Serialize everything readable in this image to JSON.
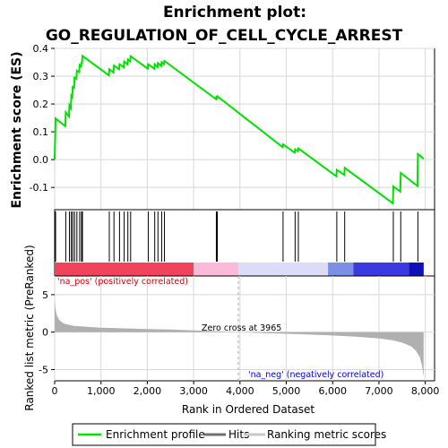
{
  "chart_data": {
    "type": "line",
    "title": "Enrichment plot:",
    "subtitle": "GO_REGULATION_OF_CELL_CYCLE_ARREST",
    "xlabel": "Rank in Ordered Dataset",
    "ylabel_top": "Enrichment score (ES)",
    "ylabel_bottom": "Ranked list metric (PreRanked)",
    "xlim": [
      0,
      8000
    ],
    "x_ticks": [
      0,
      1000,
      2000,
      3000,
      4000,
      5000,
      6000,
      7000,
      8000
    ],
    "x_tick_labels": [
      "0",
      "1,000",
      "2,000",
      "3,000",
      "4,000",
      "5,000",
      "6,000",
      "7,000",
      "8,000"
    ],
    "es_ylim": [
      -0.18,
      0.4
    ],
    "es_ticks": [
      -0.1,
      0.0,
      0.1,
      0.2,
      0.3,
      0.4
    ],
    "es_tick_labels": [
      "-0.1",
      "0.0",
      "0.1",
      "0.2",
      "0.3",
      "0.4"
    ],
    "metric_ylim": [
      -6.5,
      7.5
    ],
    "metric_ticks": [
      -5,
      0,
      5
    ],
    "metric_tick_labels": [
      "-5",
      "0",
      "5"
    ],
    "total_genes": 7965,
    "hits": [
      20,
      240,
      320,
      360,
      390,
      430,
      480,
      540,
      580,
      600,
      1180,
      1280,
      1400,
      1500,
      1580,
      1640,
      2020,
      2160,
      2230,
      2310,
      2370,
      3490,
      3510,
      4930,
      5190,
      5260,
      6090,
      6260,
      7310,
      7470,
      7840
    ],
    "enrichment_profile": [
      [
        0,
        0.0
      ],
      [
        20,
        0.148
      ],
      [
        230,
        0.12
      ],
      [
        240,
        0.17
      ],
      [
        310,
        0.155
      ],
      [
        320,
        0.195
      ],
      [
        350,
        0.185
      ],
      [
        360,
        0.23
      ],
      [
        380,
        0.225
      ],
      [
        390,
        0.265
      ],
      [
        420,
        0.255
      ],
      [
        430,
        0.295
      ],
      [
        470,
        0.29
      ],
      [
        480,
        0.32
      ],
      [
        530,
        0.315
      ],
      [
        540,
        0.34
      ],
      [
        570,
        0.335
      ],
      [
        580,
        0.35
      ],
      [
        590,
        0.345
      ],
      [
        600,
        0.373
      ],
      [
        1170,
        0.303
      ],
      [
        1180,
        0.325
      ],
      [
        1270,
        0.313
      ],
      [
        1280,
        0.338
      ],
      [
        1390,
        0.325
      ],
      [
        1400,
        0.343
      ],
      [
        1490,
        0.332
      ],
      [
        1500,
        0.353
      ],
      [
        1570,
        0.343
      ],
      [
        1580,
        0.36
      ],
      [
        1630,
        0.353
      ],
      [
        1640,
        0.372
      ],
      [
        2010,
        0.327
      ],
      [
        2020,
        0.343
      ],
      [
        2150,
        0.327
      ],
      [
        2160,
        0.343
      ],
      [
        2220,
        0.333
      ],
      [
        2230,
        0.347
      ],
      [
        2300,
        0.337
      ],
      [
        2310,
        0.35
      ],
      [
        2360,
        0.343
      ],
      [
        2370,
        0.355
      ],
      [
        3480,
        0.218
      ],
      [
        3490,
        0.228
      ],
      [
        3500,
        0.222
      ],
      [
        3510,
        0.228
      ],
      [
        4920,
        0.045
      ],
      [
        4930,
        0.055
      ],
      [
        5180,
        0.025
      ],
      [
        5190,
        0.037
      ],
      [
        5250,
        0.03
      ],
      [
        5260,
        0.04
      ],
      [
        6080,
        -0.06
      ],
      [
        6090,
        -0.037
      ],
      [
        6250,
        -0.055
      ],
      [
        6260,
        -0.03
      ],
      [
        7300,
        -0.157
      ],
      [
        7310,
        -0.097
      ],
      [
        7460,
        -0.115
      ],
      [
        7470,
        -0.048
      ],
      [
        7830,
        -0.095
      ],
      [
        7840,
        0.02
      ],
      [
        7965,
        0.003
      ]
    ],
    "color_bar_segments": [
      {
        "start": 0,
        "end": 3000,
        "color": "#f0445e"
      },
      {
        "start": 3000,
        "end": 3965,
        "color": "#fbbad8"
      },
      {
        "start": 3965,
        "end": 5900,
        "color": "#dadcf8"
      },
      {
        "start": 5900,
        "end": 6450,
        "color": "#7b8ee8"
      },
      {
        "start": 6450,
        "end": 7650,
        "color": "#3a3ae0"
      },
      {
        "start": 7650,
        "end": 7965,
        "color": "#1010b8"
      }
    ],
    "ranked_metric": [
      [
        0,
        4.3
      ],
      [
        20,
        3.0
      ],
      [
        50,
        2.2
      ],
      [
        100,
        1.6
      ],
      [
        200,
        1.15
      ],
      [
        400,
        0.85
      ],
      [
        700,
        0.7
      ],
      [
        1000,
        0.6
      ],
      [
        1500,
        0.5
      ],
      [
        2000,
        0.42
      ],
      [
        2500,
        0.35
      ],
      [
        3000,
        0.22
      ],
      [
        3500,
        0.1
      ],
      [
        3965,
        0.0
      ],
      [
        4500,
        -0.12
      ],
      [
        5000,
        -0.22
      ],
      [
        5500,
        -0.33
      ],
      [
        6000,
        -0.45
      ],
      [
        6500,
        -0.6
      ],
      [
        7000,
        -0.85
      ],
      [
        7300,
        -1.1
      ],
      [
        7500,
        -1.4
      ],
      [
        7700,
        -1.9
      ],
      [
        7800,
        -2.5
      ],
      [
        7880,
        -3.3
      ],
      [
        7930,
        -4.5
      ],
      [
        7965,
        -6.0
      ]
    ],
    "zero_cross_label": "Zero cross at 3965",
    "zero_cross": 3965,
    "pos_label": "'na_pos' (positively correlated)",
    "neg_label": "'na_neg' (negatively correlated)",
    "colors": {
      "profile": "#00e000",
      "hits": "#000000",
      "metric": "#b0b0b0",
      "pos_label": "#d00000",
      "neg_label": "#0000d0"
    },
    "legend": [
      {
        "label": "Enrichment profile",
        "style": "profile"
      },
      {
        "label": "Hits",
        "style": "hits"
      },
      {
        "label": "Ranking metric scores",
        "style": "metric"
      }
    ]
  }
}
